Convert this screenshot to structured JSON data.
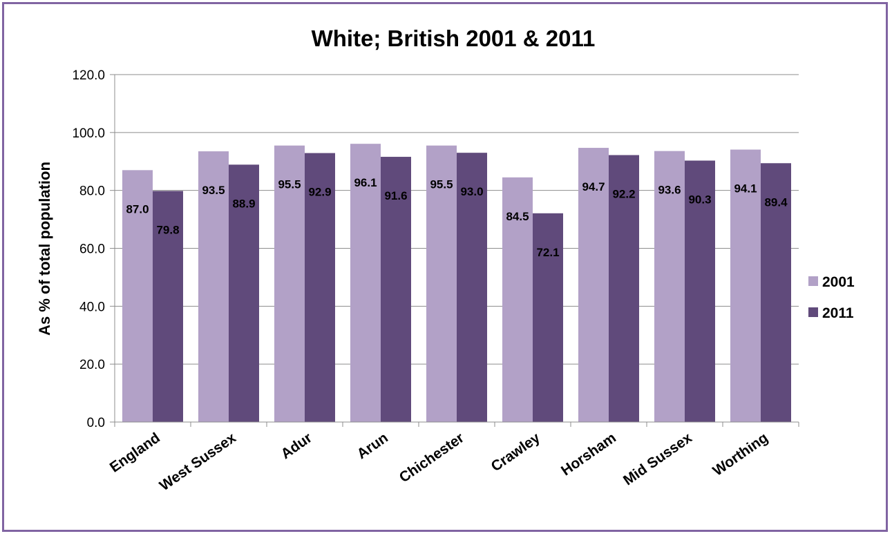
{
  "chart_data": {
    "type": "bar",
    "title": "White; British 2001 & 2011",
    "xlabel": "",
    "ylabel": "As % of total population",
    "ylim": [
      0,
      120
    ],
    "yticks": [
      "0.0",
      "20.0",
      "40.0",
      "60.0",
      "80.0",
      "100.0",
      "120.0"
    ],
    "grid": true,
    "legend_position": "right",
    "categories": [
      "England",
      "West Sussex",
      "Adur",
      "Arun",
      "Chichester",
      "Crawley",
      "Horsham",
      "Mid Sussex",
      "Worthing"
    ],
    "series": [
      {
        "name": "2001",
        "color": "#b2a1c7",
        "values": [
          87.0,
          93.5,
          95.5,
          96.1,
          95.5,
          84.5,
          94.7,
          93.6,
          94.1
        ],
        "labels": [
          "87.0",
          "93.5",
          "95.5",
          "96.1",
          "95.5",
          "84.5",
          "94.7",
          "93.6",
          "94.1"
        ]
      },
      {
        "name": "2011",
        "color": "#604a7b",
        "values": [
          79.8,
          88.9,
          92.9,
          91.6,
          93.0,
          72.1,
          92.2,
          90.3,
          89.4
        ],
        "labels": [
          "79.8",
          "88.9",
          "92.9",
          "91.6",
          "93.0",
          "72.1",
          "92.2",
          "90.3",
          "89.4"
        ]
      }
    ]
  }
}
